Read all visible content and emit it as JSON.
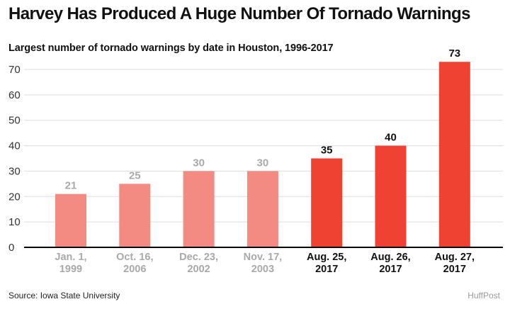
{
  "header": {
    "title": "Harvey Has Produced A Huge Number Of Tornado Warnings",
    "subtitle": "Largest number of tornado warnings by date in Houston, 1996-2017"
  },
  "footer": {
    "source": "Source: Iowa State University",
    "credit": "HuffPost"
  },
  "colors": {
    "past_bar": "#f48b82",
    "harvey_bar": "#ef4233",
    "past_text": "#a9a9a9",
    "harvey_text": "#111111",
    "grid": "#dddddd",
    "baseline": "#000000"
  },
  "chart_data": {
    "type": "bar",
    "title": "Harvey Has Produced A Huge Number Of Tornado Warnings",
    "subtitle": "Largest number of tornado warnings by date in Houston, 1996-2017",
    "xlabel": "",
    "ylabel": "",
    "categories": [
      [
        "Jan. 1,",
        "1999"
      ],
      [
        "Oct. 16,",
        "2006"
      ],
      [
        "Dec. 23,",
        "2002"
      ],
      [
        "Nov. 17,",
        "2003"
      ],
      [
        "Aug. 25,",
        "2017"
      ],
      [
        "Aug. 26,",
        "2017"
      ],
      [
        "Aug. 27,",
        "2017"
      ]
    ],
    "values": [
      21,
      25,
      30,
      30,
      35,
      40,
      73
    ],
    "highlight": [
      false,
      false,
      false,
      false,
      true,
      true,
      true
    ],
    "ylim": [
      0,
      75
    ],
    "yticks": [
      0,
      10,
      20,
      30,
      40,
      50,
      60,
      70
    ],
    "grid": true,
    "legend": "none"
  }
}
